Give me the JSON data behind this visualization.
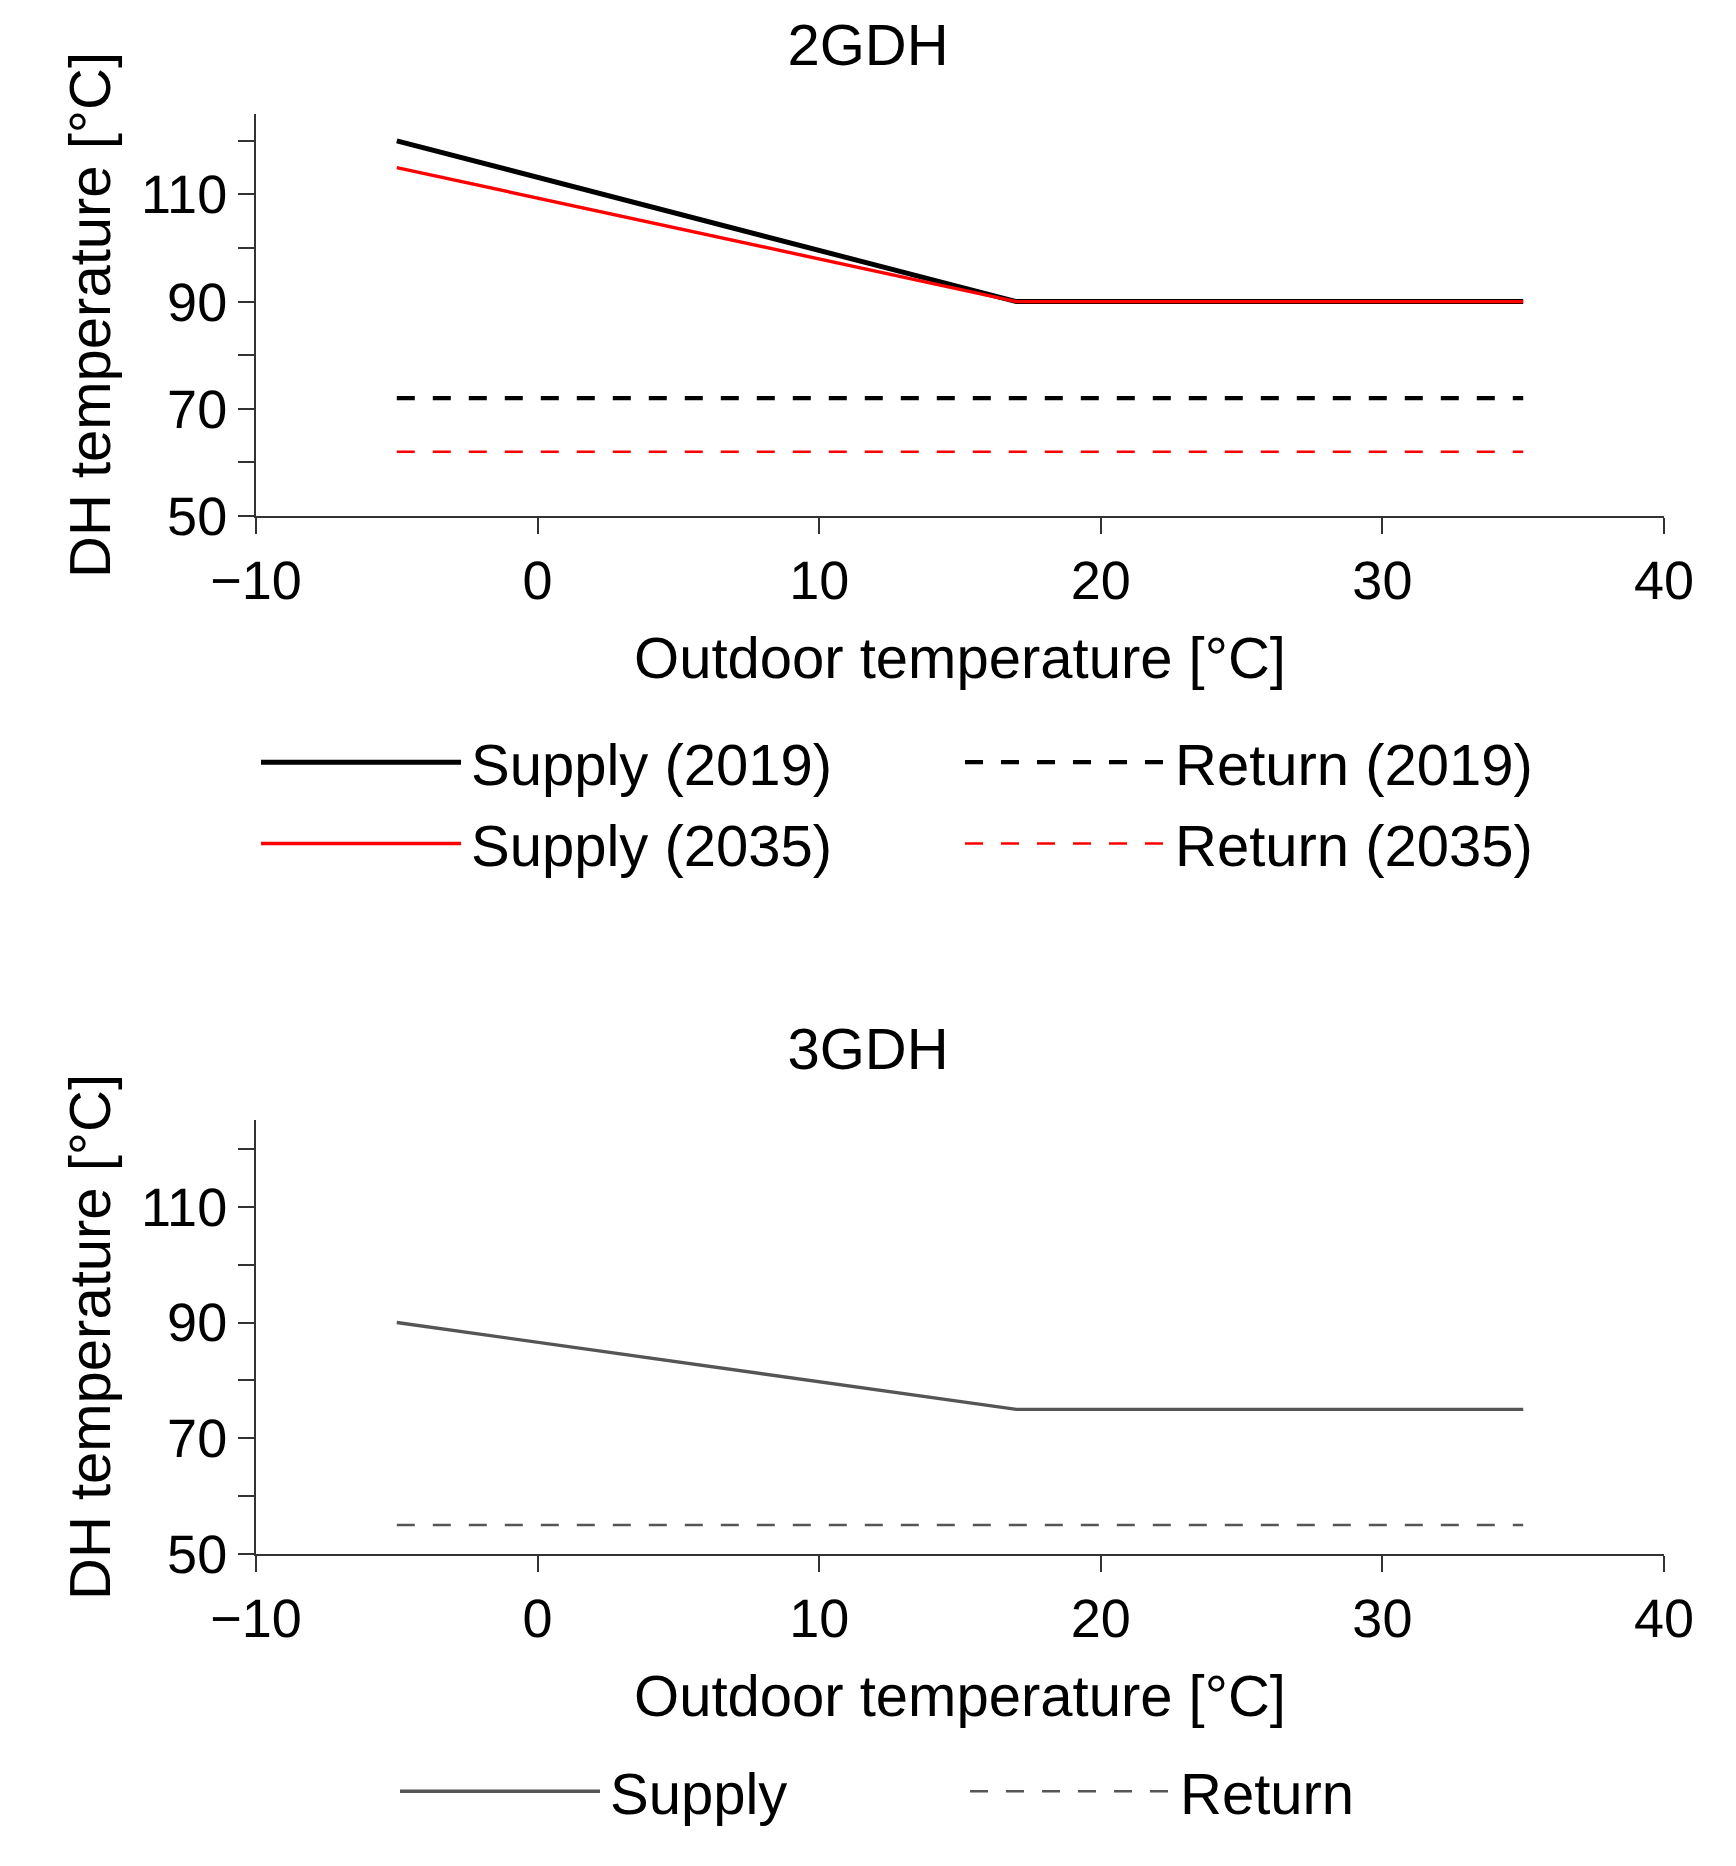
{
  "chart_data": [
    {
      "type": "line",
      "title": "2GDH",
      "xlabel": "Outdoor temperature [°C]",
      "ylabel": "DH temperature [°C]",
      "x": [
        -5,
        17,
        35
      ],
      "series": [
        {
          "name": "Supply (2019)",
          "color": "#000000",
          "line_style": "solid",
          "values": [
            120,
            90,
            90
          ]
        },
        {
          "name": "Return (2019)",
          "color": "#000000",
          "line_style": "dashed",
          "values": [
            72,
            72,
            72
          ]
        },
        {
          "name": "Supply (2035)",
          "color": "#ff0000",
          "line_style": "solid",
          "values": [
            115,
            90,
            90
          ]
        },
        {
          "name": "Return (2035)",
          "color": "#ff0000",
          "line_style": "dashed",
          "values": [
            62,
            62,
            62
          ]
        }
      ],
      "xlim": [
        -10,
        40
      ],
      "xticks": [
        -10,
        0,
        10,
        20,
        30,
        40
      ],
      "ylim": [
        50,
        125
      ],
      "yticks": [
        50,
        {
          "value": 60,
          "label": null
        },
        70,
        {
          "value": 80,
          "label": null
        },
        90,
        {
          "value": 100,
          "label": null
        },
        110,
        {
          "value": 120,
          "label": null
        }
      ],
      "grid": false,
      "legend": "bottom",
      "marker": "none"
    },
    {
      "type": "line",
      "title": "3GDH",
      "xlabel": "Outdoor temperature [°C]",
      "ylabel": "DH temperature [°C]",
      "x": [
        -5,
        17,
        35
      ],
      "series": [
        {
          "name": "Supply",
          "color": "#555555",
          "line_style": "solid",
          "values": [
            90,
            75,
            75
          ]
        },
        {
          "name": "Return",
          "color": "#555555",
          "line_style": "dashed",
          "values": [
            55,
            55,
            55
          ]
        }
      ],
      "xlim": [
        -10,
        40
      ],
      "xticks": [
        -10,
        0,
        10,
        20,
        30,
        40
      ],
      "ylim": [
        50,
        125
      ],
      "yticks": [
        50,
        {
          "value": 60,
          "label": null
        },
        70,
        {
          "value": 80,
          "label": null
        },
        90,
        {
          "value": 100,
          "label": null
        },
        110,
        {
          "value": 120,
          "label": null
        }
      ],
      "grid": false,
      "legend": "bottom",
      "marker": "none"
    }
  ]
}
